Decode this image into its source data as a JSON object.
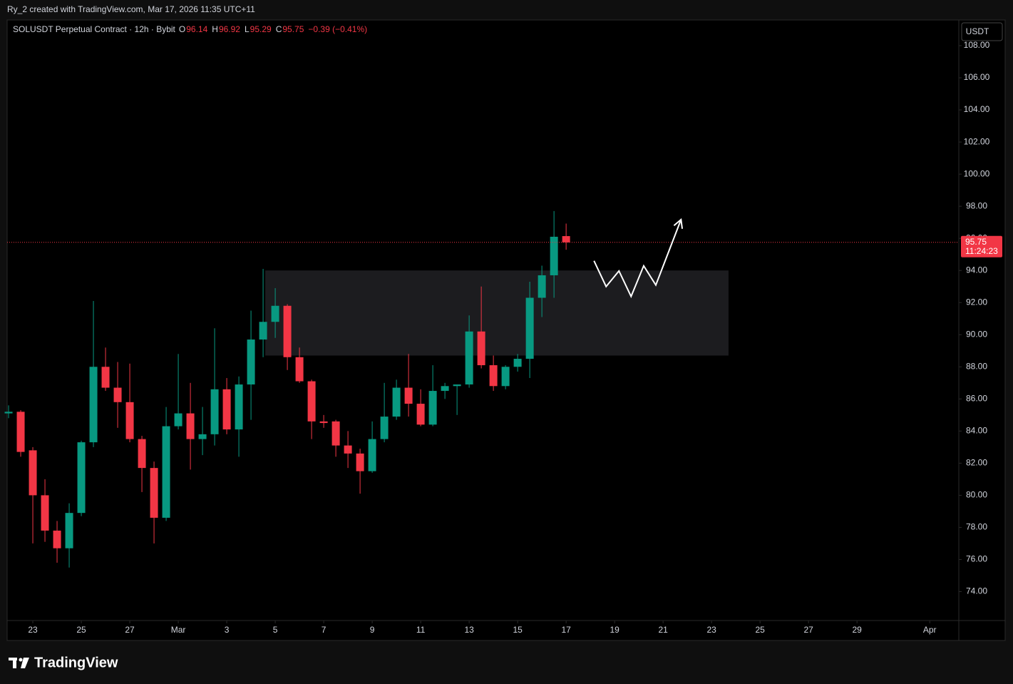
{
  "header": "Ry_2 created with TradingView.com, Mar 17, 2026 11:35 UTC+11",
  "footer": {
    "brand": "TradingView"
  },
  "chart_data": {
    "type": "candlestick",
    "legend": {
      "symbol": "SOLUSDT Perpetual Contract · 12h · Bybit",
      "letters": [
        "O",
        "H",
        "L",
        "C"
      ],
      "change": "−0.39 (−0.41%)"
    },
    "currency": "USDT",
    "countdown": "11:24:23",
    "up_color": "#089981",
    "down_color": "#f23645",
    "x": [
      -1,
      -0.5,
      0,
      0.5,
      1,
      1.5,
      2,
      2.5,
      3,
      3.5,
      4,
      4.5,
      5,
      5.5,
      6,
      6.5,
      7,
      7.5,
      8,
      8.5,
      9,
      9.5,
      10,
      10.5,
      11,
      11.5,
      12,
      12.5,
      13,
      13.5,
      14,
      14.5,
      15,
      15.5,
      16,
      16.5,
      17,
      17.5,
      18,
      18.5,
      19,
      19.5,
      20,
      20.5,
      21,
      21.5,
      22
    ],
    "open": [
      85.1,
      85.2,
      82.8,
      80.0,
      77.8,
      76.7,
      78.9,
      83.3,
      88.0,
      86.7,
      85.8,
      83.5,
      81.7,
      78.6,
      84.3,
      85.1,
      83.5,
      83.8,
      86.6,
      84.1,
      86.9,
      89.7,
      90.8,
      91.8,
      88.6,
      87.1,
      84.6,
      84.6,
      83.1,
      82.6,
      81.5,
      83.5,
      84.9,
      86.7,
      85.7,
      84.4,
      86.5,
      86.8,
      86.9,
      90.2,
      88.1,
      86.8,
      88.0,
      88.5,
      92.3,
      93.7,
      96.14
    ],
    "high": [
      85.6,
      85.3,
      83.0,
      81.0,
      78.4,
      79.5,
      83.4,
      92.1,
      89.2,
      88.3,
      88.2,
      83.7,
      82.1,
      85.5,
      88.8,
      87.0,
      85.5,
      90.4,
      87.3,
      87.4,
      91.5,
      94.1,
      92.9,
      91.9,
      89.2,
      87.2,
      85.0,
      84.7,
      84.0,
      82.9,
      84.6,
      87.0,
      87.2,
      88.8,
      86.6,
      88.1,
      87.0,
      86.9,
      91.2,
      93.0,
      88.7,
      88.1,
      88.8,
      93.3,
      94.3,
      97.7,
      96.92
    ],
    "low": [
      84.8,
      82.4,
      77.0,
      77.1,
      75.8,
      75.5,
      78.7,
      83.0,
      86.5,
      84.2,
      83.3,
      80.2,
      77.0,
      78.4,
      84.1,
      81.6,
      82.5,
      83.1,
      83.8,
      82.4,
      84.7,
      88.6,
      89.8,
      87.8,
      87.0,
      83.5,
      84.2,
      82.4,
      81.7,
      80.1,
      81.4,
      83.3,
      84.7,
      84.9,
      84.3,
      84.3,
      86.0,
      85.0,
      86.7,
      87.9,
      86.5,
      86.6,
      87.7,
      87.3,
      91.1,
      92.3,
      95.29
    ],
    "close": [
      85.2,
      82.7,
      80.0,
      77.8,
      76.7,
      78.9,
      83.3,
      88.0,
      86.7,
      85.8,
      83.5,
      81.7,
      78.6,
      84.3,
      85.1,
      83.5,
      83.8,
      86.6,
      84.1,
      86.9,
      89.7,
      90.8,
      91.8,
      88.6,
      87.1,
      84.6,
      84.5,
      83.1,
      82.6,
      81.5,
      83.5,
      84.9,
      86.7,
      85.7,
      84.4,
      86.5,
      86.8,
      86.9,
      90.2,
      88.1,
      86.8,
      88.0,
      88.5,
      92.3,
      93.7,
      96.1,
      95.75
    ],
    "zone": {
      "x": [
        9.59,
        28.7
      ],
      "y": [
        88.7,
        94.0
      ],
      "color": "#1c1c1f"
    },
    "arrow": {
      "x": [
        23.15,
        23.65,
        24.18,
        24.68,
        25.2,
        25.7,
        26.74
      ],
      "y": [
        94.6,
        93.0,
        93.97,
        92.38,
        94.29,
        93.09,
        97.17
      ],
      "color": "#ffffff"
    },
    "xlim": [
      -1.06,
      38.2
    ],
    "ylim": [
      72.2,
      109.6
    ],
    "xticks": [
      {
        "value": 0,
        "label": "23"
      },
      {
        "value": 2,
        "label": "25"
      },
      {
        "value": 4,
        "label": "27"
      },
      {
        "value": 6,
        "label": "Mar"
      },
      {
        "value": 8,
        "label": "3"
      },
      {
        "value": 10,
        "label": "5"
      },
      {
        "value": 12,
        "label": "7"
      },
      {
        "value": 14,
        "label": "9"
      },
      {
        "value": 16,
        "label": "11"
      },
      {
        "value": 18,
        "label": "13"
      },
      {
        "value": 20,
        "label": "15"
      },
      {
        "value": 22,
        "label": "17"
      },
      {
        "value": 24,
        "label": "19"
      },
      {
        "value": 26,
        "label": "21"
      },
      {
        "value": 28,
        "label": "23"
      },
      {
        "value": 30,
        "label": "25"
      },
      {
        "value": 32,
        "label": "27"
      },
      {
        "value": 34,
        "label": "29"
      },
      {
        "value": 37,
        "label": "Apr"
      }
    ],
    "yticks": [
      {
        "value": 74,
        "label": "74.00"
      },
      {
        "value": 76,
        "label": "76.00"
      },
      {
        "value": 78,
        "label": "78.00"
      },
      {
        "value": 80,
        "label": "80.00"
      },
      {
        "value": 82,
        "label": "82.00"
      },
      {
        "value": 84,
        "label": "84.00"
      },
      {
        "value": 86,
        "label": "86.00"
      },
      {
        "value": 88,
        "label": "88.00"
      },
      {
        "value": 90,
        "label": "90.00"
      },
      {
        "value": 92,
        "label": "92.00"
      },
      {
        "value": 94,
        "label": "94.00"
      },
      {
        "value": 96,
        "label": "96.00"
      },
      {
        "value": 98,
        "label": "98.00"
      },
      {
        "value": 100,
        "label": "100.00"
      },
      {
        "value": 102,
        "label": "102.00"
      },
      {
        "value": 104,
        "label": "104.00"
      },
      {
        "value": 106,
        "label": "106.00"
      },
      {
        "value": 108,
        "label": "108.00"
      }
    ],
    "grid": false
  }
}
